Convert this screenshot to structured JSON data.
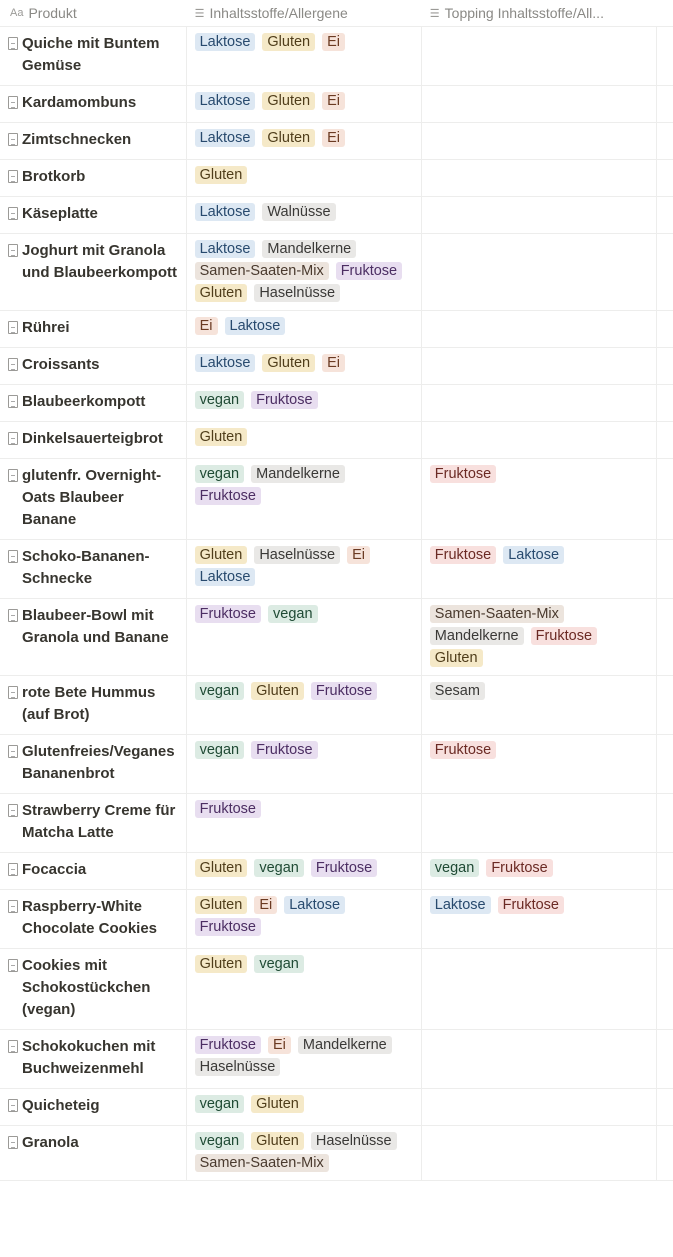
{
  "palette": {
    "blue": {
      "bg": "#dde8f3",
      "fg": "#284a6e"
    },
    "yellow": {
      "bg": "#f5e9c8",
      "fg": "#4f3d1a"
    },
    "orange": {
      "bg": "#f6e3da",
      "fg": "#6b3a22"
    },
    "gray": {
      "bg": "#e9e8e6",
      "fg": "#3a3937"
    },
    "green": {
      "bg": "#dcebe3",
      "fg": "#1f4a34"
    },
    "purple": {
      "bg": "#e8def0",
      "fg": "#4c2e63"
    },
    "red": {
      "bg": "#f8e0de",
      "fg": "#6b2a24"
    },
    "brown": {
      "bg": "#ece4dd",
      "fg": "#4a3a2e"
    }
  },
  "header": {
    "produkt": "Produkt",
    "produkt_icon": "Aa",
    "allergens": "Inhaltsstoffe/Allergene",
    "topping": "Topping Inhaltsstoffe/All...",
    "list_icon": "list-icon"
  },
  "rows": [
    {
      "name": "Quiche mit Buntem Gemüse",
      "allergens": [
        [
          "Laktose",
          "blue"
        ],
        [
          "Gluten",
          "yellow"
        ],
        [
          "Ei",
          "orange"
        ]
      ],
      "topping": []
    },
    {
      "name": "Kardamombuns",
      "allergens": [
        [
          "Laktose",
          "blue"
        ],
        [
          "Gluten",
          "yellow"
        ],
        [
          "Ei",
          "orange"
        ]
      ],
      "topping": []
    },
    {
      "name": "Zimtschnecken",
      "allergens": [
        [
          "Laktose",
          "blue"
        ],
        [
          "Gluten",
          "yellow"
        ],
        [
          "Ei",
          "orange"
        ]
      ],
      "topping": []
    },
    {
      "name": "Brotkorb",
      "allergens": [
        [
          "Gluten",
          "yellow"
        ]
      ],
      "topping": []
    },
    {
      "name": "Käseplatte",
      "allergens": [
        [
          "Laktose",
          "blue"
        ],
        [
          "Walnüsse",
          "gray"
        ]
      ],
      "topping": []
    },
    {
      "name": "Joghurt mit Granola und Blaubeerkompott",
      "allergens": [
        [
          "Laktose",
          "blue"
        ],
        [
          "Mandelkerne",
          "gray"
        ],
        [
          "Samen-Saaten-Mix",
          "brown"
        ],
        [
          "Fruktose",
          "purple"
        ],
        [
          "Gluten",
          "yellow"
        ],
        [
          "Haselnüsse",
          "gray"
        ]
      ],
      "topping": []
    },
    {
      "name": "Rührei",
      "allergens": [
        [
          "Ei",
          "orange"
        ],
        [
          "Laktose",
          "blue"
        ]
      ],
      "topping": []
    },
    {
      "name": "Croissants",
      "allergens": [
        [
          "Laktose",
          "blue"
        ],
        [
          "Gluten",
          "yellow"
        ],
        [
          "Ei",
          "orange"
        ]
      ],
      "topping": []
    },
    {
      "name": "Blaubeerkompott",
      "allergens": [
        [
          "vegan",
          "green"
        ],
        [
          "Fruktose",
          "purple"
        ]
      ],
      "topping": []
    },
    {
      "name": "Dinkelsauerteigbrot",
      "allergens": [
        [
          "Gluten",
          "yellow"
        ]
      ],
      "topping": []
    },
    {
      "name": "glutenfr. Overnight-Oats Blaubeer Banane",
      "allergens": [
        [
          "vegan",
          "green"
        ],
        [
          "Mandelkerne",
          "gray"
        ],
        [
          "Fruktose",
          "purple"
        ]
      ],
      "topping": [
        [
          "Fruktose",
          "red"
        ]
      ]
    },
    {
      "name": "Schoko-Bananen-Schnecke",
      "allergens": [
        [
          "Gluten",
          "yellow"
        ],
        [
          "Haselnüsse",
          "gray"
        ],
        [
          "Ei",
          "orange"
        ],
        [
          "Laktose",
          "blue"
        ]
      ],
      "topping": [
        [
          "Fruktose",
          "red"
        ],
        [
          "Laktose",
          "blue"
        ]
      ]
    },
    {
      "name": "Blaubeer-Bowl mit Granola und Banane",
      "allergens": [
        [
          "Fruktose",
          "purple"
        ],
        [
          "vegan",
          "green"
        ]
      ],
      "topping": [
        [
          "Samen-Saaten-Mix",
          "brown"
        ],
        [
          "Mandelkerne",
          "gray"
        ],
        [
          "Fruktose",
          "red"
        ],
        [
          "Gluten",
          "yellow"
        ]
      ]
    },
    {
      "name": "rote Bete Hummus (auf Brot)",
      "allergens": [
        [
          "vegan",
          "green"
        ],
        [
          "Gluten",
          "yellow"
        ],
        [
          "Fruktose",
          "purple"
        ]
      ],
      "topping": [
        [
          "Sesam",
          "gray"
        ]
      ]
    },
    {
      "name": "Glutenfreies/Veganes Bananenbrot",
      "allergens": [
        [
          "vegan",
          "green"
        ],
        [
          "Fruktose",
          "purple"
        ]
      ],
      "topping": [
        [
          "Fruktose",
          "red"
        ]
      ]
    },
    {
      "name": "Strawberry Creme für Matcha Latte",
      "allergens": [
        [
          "Fruktose",
          "purple"
        ]
      ],
      "topping": []
    },
    {
      "name": "Focaccia",
      "allergens": [
        [
          "Gluten",
          "yellow"
        ],
        [
          "vegan",
          "green"
        ],
        [
          "Fruktose",
          "purple"
        ]
      ],
      "topping": [
        [
          "vegan",
          "green"
        ],
        [
          "Fruktose",
          "red"
        ]
      ]
    },
    {
      "name": "Raspberry-White Chocolate Cookies",
      "allergens": [
        [
          "Gluten",
          "yellow"
        ],
        [
          "Ei",
          "orange"
        ],
        [
          "Laktose",
          "blue"
        ],
        [
          "Fruktose",
          "purple"
        ]
      ],
      "topping": [
        [
          "Laktose",
          "blue"
        ],
        [
          "Fruktose",
          "red"
        ]
      ]
    },
    {
      "name": "Cookies mit Schokostückchen (vegan)",
      "allergens": [
        [
          "Gluten",
          "yellow"
        ],
        [
          "vegan",
          "green"
        ]
      ],
      "topping": []
    },
    {
      "name": "Schokokuchen mit Buchweizenmehl",
      "allergens": [
        [
          "Fruktose",
          "purple"
        ],
        [
          "Ei",
          "orange"
        ],
        [
          "Mandelkerne",
          "gray"
        ],
        [
          "Haselnüsse",
          "gray"
        ]
      ],
      "topping": []
    },
    {
      "name": "Quicheteig",
      "allergens": [
        [
          "vegan",
          "green"
        ],
        [
          "Gluten",
          "yellow"
        ]
      ],
      "topping": []
    },
    {
      "name": "Granola",
      "allergens": [
        [
          "vegan",
          "green"
        ],
        [
          "Gluten",
          "yellow"
        ],
        [
          "Haselnüsse",
          "gray"
        ],
        [
          "Samen-Saaten-Mix",
          "brown"
        ]
      ],
      "topping": []
    }
  ]
}
